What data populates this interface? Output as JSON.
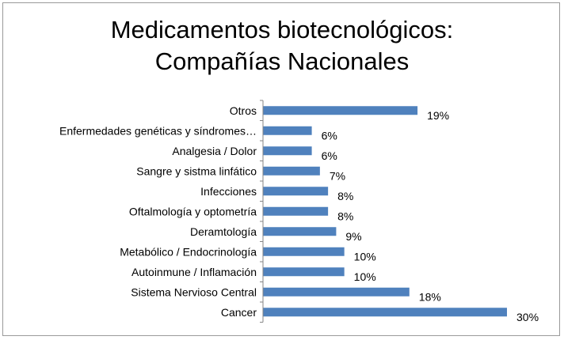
{
  "chart_data": {
    "type": "bar",
    "orientation": "horizontal",
    "title_lines": [
      "Medicamentos biotecnológicos:",
      "Compañías Nacionales"
    ],
    "categories": [
      "Otros",
      "Enfermedades genéticas y síndromes…",
      "Analgesia / Dolor",
      "Sangre y sistma linfático",
      "Infecciones",
      "Oftalmología y optometría",
      "Deramtología",
      "Metabólico / Endocrinología",
      "Autoinmune / Inflamación",
      "Sistema Nervioso Central",
      "Cancer"
    ],
    "values": [
      19,
      6,
      6,
      7,
      8,
      8,
      9,
      10,
      10,
      18,
      30
    ],
    "value_labels": [
      "19%",
      "6%",
      "6%",
      "7%",
      "8%",
      "8%",
      "9%",
      "10%",
      "10%",
      "18%",
      "30%"
    ],
    "unit": "%",
    "xlim": [
      0,
      30
    ],
    "grid": false,
    "legend": "none",
    "colors": {
      "bar": "#4F81BD",
      "axis": "#868686",
      "frame": "#9a9a9a"
    }
  }
}
